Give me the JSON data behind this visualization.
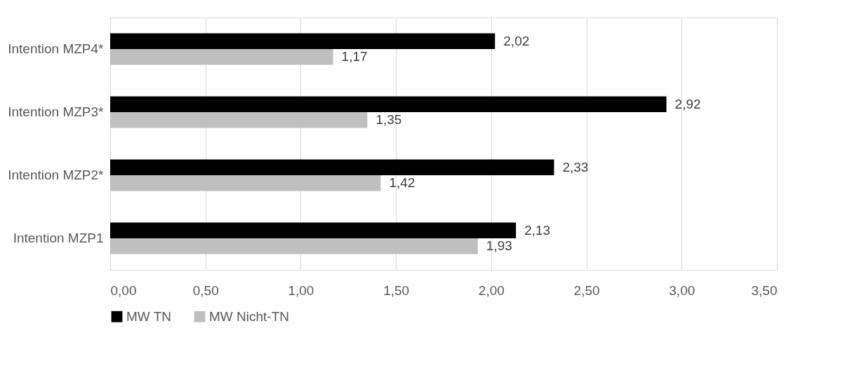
{
  "chart_data": {
    "type": "bar",
    "orientation": "horizontal",
    "categories": [
      "Intention MZP4*",
      "Intention MZP3*",
      "Intention MZP2*",
      "Intention MZP1"
    ],
    "series": [
      {
        "name": "MW TN",
        "color": "#000000",
        "values": [
          2.02,
          2.92,
          2.33,
          2.13
        ],
        "value_labels": [
          "2,02",
          "2,92",
          "2,33",
          "2,13"
        ]
      },
      {
        "name": "MW Nicht-TN",
        "color": "#bfbfbf",
        "values": [
          1.17,
          1.35,
          1.42,
          1.93
        ],
        "value_labels": [
          "1,17",
          "1,35",
          "1,42",
          "1,93"
        ]
      }
    ],
    "xlim": [
      0,
      3.5
    ],
    "xticks": [
      {
        "value": 0,
        "label": "0,00"
      },
      {
        "value": 0.5,
        "label": "0,50"
      },
      {
        "value": 1,
        "label": "1,00"
      },
      {
        "value": 1.5,
        "label": "1,50"
      },
      {
        "value": 2,
        "label": "2,00"
      },
      {
        "value": 2.5,
        "label": "2,50"
      },
      {
        "value": 3,
        "label": "3,00"
      },
      {
        "value": 3.5,
        "label": "3,50"
      }
    ],
    "grid": "x",
    "legend": "bottom"
  }
}
